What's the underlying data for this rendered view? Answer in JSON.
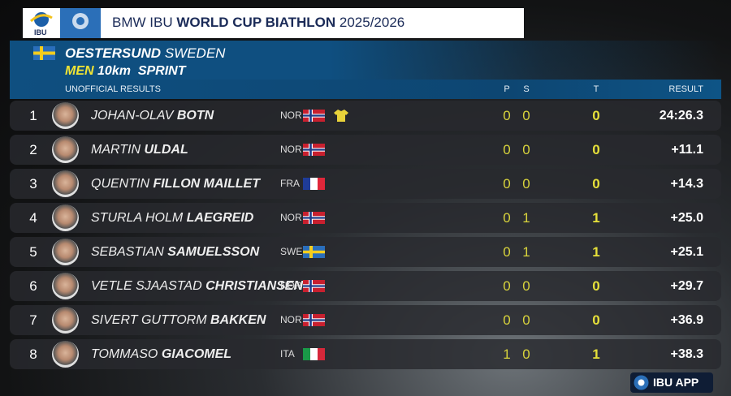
{
  "header": {
    "logo_text": "IBU",
    "prefix": "BMW IBU",
    "title": "WORLD CUP BIATHLON",
    "season": "2025/2026"
  },
  "event": {
    "venue": "OESTERSUND",
    "country": "SWEDEN",
    "gender": "MEN",
    "distance": "10km",
    "discipline": "SPRINT"
  },
  "table": {
    "caption": "UNOFFICIAL RESULTS",
    "columns": [
      "P",
      "S",
      "T",
      "RESULT"
    ],
    "rows": [
      {
        "rank": 1,
        "first": "JOHAN-OLAV",
        "last": "BOTN",
        "nation": "NOR",
        "p": 0,
        "s": 0,
        "t": 0,
        "result": "24:26.3"
      },
      {
        "rank": 2,
        "first": "MARTIN",
        "last": "ULDAL",
        "nation": "NOR",
        "p": 0,
        "s": 0,
        "t": 0,
        "result": "+11.1"
      },
      {
        "rank": 3,
        "first": "QUENTIN",
        "last": "FILLON MAILLET",
        "nation": "FRA",
        "p": 0,
        "s": 0,
        "t": 0,
        "result": "+14.3"
      },
      {
        "rank": 4,
        "first": "STURLA HOLM",
        "last": "LAEGREID",
        "nation": "NOR",
        "p": 0,
        "s": 1,
        "t": 1,
        "result": "+25.0"
      },
      {
        "rank": 5,
        "first": "SEBASTIAN",
        "last": "SAMUELSSON",
        "nation": "SWE",
        "p": 0,
        "s": 1,
        "t": 1,
        "result": "+25.1"
      },
      {
        "rank": 6,
        "first": "VETLE SJAASTAD",
        "last": "CHRISTIANSEN",
        "nation": "NOR",
        "p": 0,
        "s": 0,
        "t": 0,
        "result": "+29.7"
      },
      {
        "rank": 7,
        "first": "SIVERT GUTTORM",
        "last": "BAKKEN",
        "nation": "NOR",
        "p": 0,
        "s": 0,
        "t": 0,
        "result": "+36.9"
      },
      {
        "rank": 8,
        "first": "TOMMASO",
        "last": "GIACOMEL",
        "nation": "ITA",
        "p": 1,
        "s": 0,
        "t": 1,
        "result": "+38.3"
      }
    ]
  },
  "footer": {
    "app": "IBU APP"
  }
}
